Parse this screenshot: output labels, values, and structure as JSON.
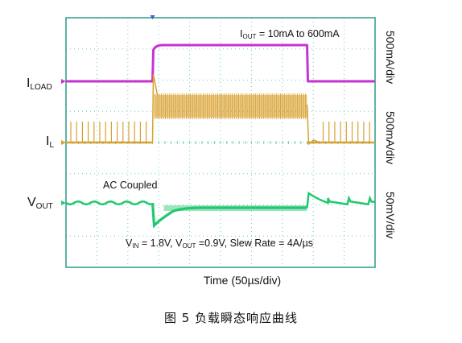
{
  "chart_data": {
    "type": "line",
    "title": "",
    "xlabel": "Time (50µs/div)",
    "x_divisions": 10,
    "y_divisions": 8,
    "grid": true,
    "annotations": {
      "iout_prefix": "I",
      "iout_sub": "OUT",
      "iout_text": " = 10mA to 600mA",
      "ac_coupled": "AC Coupled",
      "vin_prefix": "V",
      "vin_sub": "IN",
      "vin_mid": " = 1.8V, V",
      "vout_sub": "OUT",
      "vin_tail": " =0.9V, Slew Rate = 4A/µs"
    },
    "channels": [
      {
        "label_main": "I",
        "label_sub": "LOAD",
        "scale": "500mA/div",
        "color": "#c832d4",
        "levels": {
          "low_mA": 10,
          "high_mA": 600
        }
      },
      {
        "label_main": "I",
        "label_sub": "L",
        "scale": "500mA/div",
        "color": "#d9a030",
        "mode": {
          "light_load": "pulse skipping",
          "heavy_load": "continuous switching"
        }
      },
      {
        "label_main": "V",
        "label_sub": "OUT",
        "scale": "50mV/div",
        "color": "#22c870",
        "coupling": "AC"
      }
    ],
    "step_up_time_div": 2.8,
    "step_down_time_div": 7.8
  },
  "caption": "图 5 负载瞬态响应曲线"
}
